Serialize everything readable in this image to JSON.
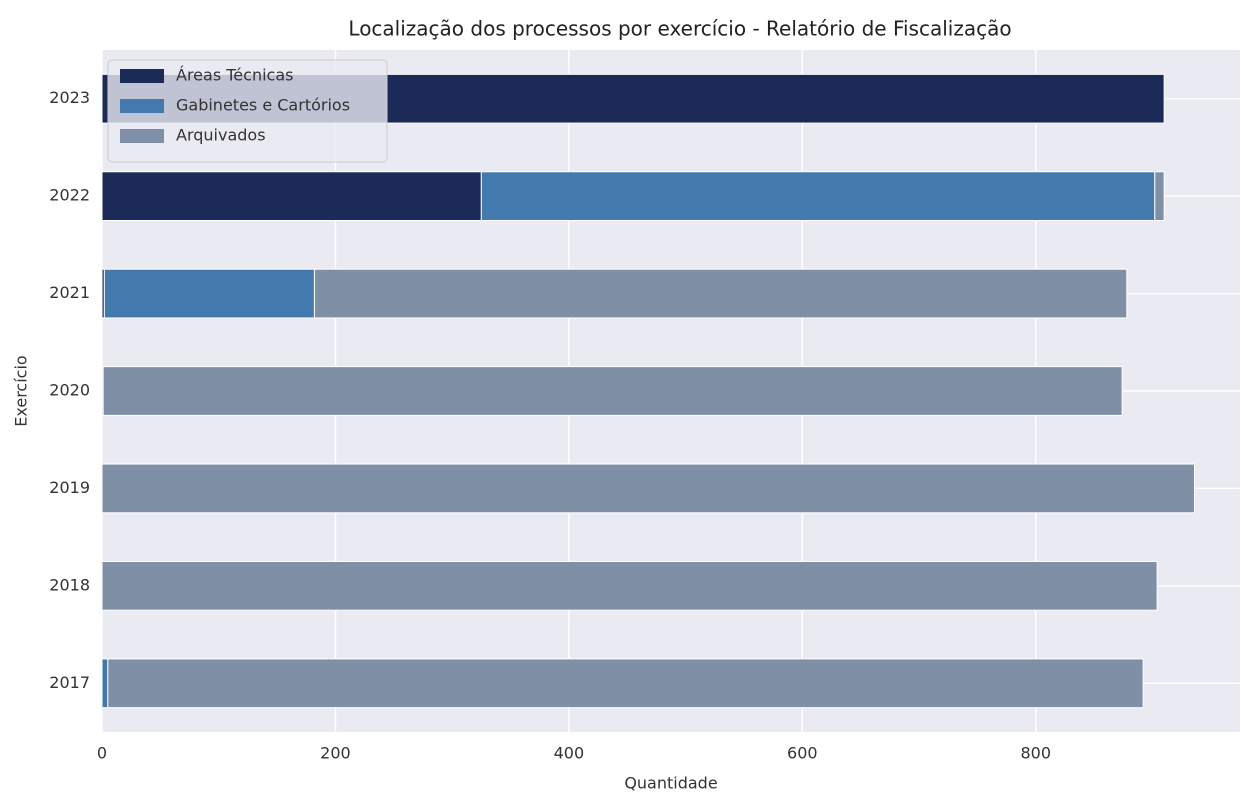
{
  "chart_data": {
    "type": "stacked_barh",
    "title": "Localização dos processos por exercício - Relatório de Fiscalização",
    "xlabel": "Quantidade",
    "ylabel": "Exercício",
    "categories": [
      "2017",
      "2018",
      "2019",
      "2020",
      "2021",
      "2022",
      "2023"
    ],
    "series": [
      {
        "name": "Áreas Técnicas",
        "color": "#1b2a57",
        "values": [
          0,
          0,
          0,
          1,
          2,
          325,
          910
        ]
      },
      {
        "name": "Gabinetes e Cartórios",
        "color": "#4479ae",
        "values": [
          5,
          0,
          0,
          0,
          180,
          577,
          0
        ]
      },
      {
        "name": "Arquivados",
        "color": "#7f8fa6",
        "values": [
          887,
          904,
          936,
          873,
          696,
          8,
          0
        ]
      }
    ],
    "xlim": [
      0,
      975
    ],
    "xticks": [
      0,
      200,
      400,
      600,
      800
    ],
    "grid": true,
    "legend": "upper left"
  }
}
